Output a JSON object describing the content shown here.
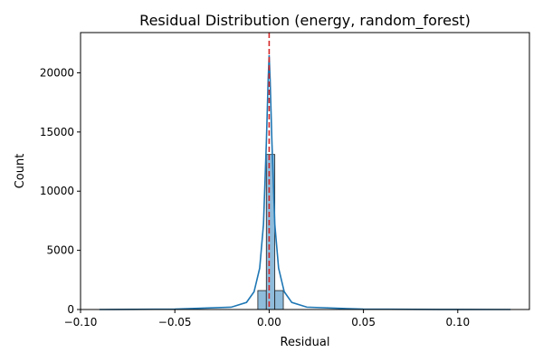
{
  "chart_data": {
    "type": "histogram",
    "title": "Residual Distribution (energy, random_forest)",
    "xlabel": "Residual",
    "ylabel": "Count",
    "xlim": [
      -0.1,
      0.138
    ],
    "ylim": [
      0,
      23400
    ],
    "xticks": [
      -0.1,
      -0.05,
      0.0,
      0.05,
      0.1
    ],
    "xtick_labels": [
      "−0.10",
      "−0.05",
      "0.00",
      "0.05",
      "0.10"
    ],
    "yticks": [
      0,
      5000,
      10000,
      15000,
      20000
    ],
    "ytick_labels": [
      "0",
      "5000",
      "10000",
      "15000",
      "20000"
    ],
    "grid": false,
    "bins": [
      {
        "x0": -0.006,
        "x1": -0.0015,
        "count": 1600
      },
      {
        "x0": -0.0015,
        "x1": 0.003,
        "count": 13100
      },
      {
        "x0": 0.003,
        "x1": 0.0075,
        "count": 1600
      }
    ],
    "kde": {
      "x": [
        -0.09,
        -0.05,
        -0.02,
        -0.012,
        -0.008,
        -0.005,
        -0.003,
        -0.0015,
        -0.0005,
        0.0,
        0.0005,
        0.0015,
        0.003,
        0.005,
        0.008,
        0.012,
        0.02,
        0.05,
        0.09,
        0.128
      ],
      "y": [
        0,
        30,
        200,
        600,
        1500,
        3500,
        7200,
        14000,
        19500,
        21500,
        19500,
        14000,
        7200,
        3500,
        1500,
        600,
        200,
        30,
        5,
        0
      ]
    },
    "reference_line": {
      "x": 0.0,
      "style": "dashed",
      "color": "#d62728"
    },
    "colors": {
      "bar_fill": "#8fbcdb",
      "bar_edge": "#1f1f1f",
      "kde_line": "#1f77b4",
      "ref_line": "#d62728",
      "axis": "#000000"
    }
  }
}
